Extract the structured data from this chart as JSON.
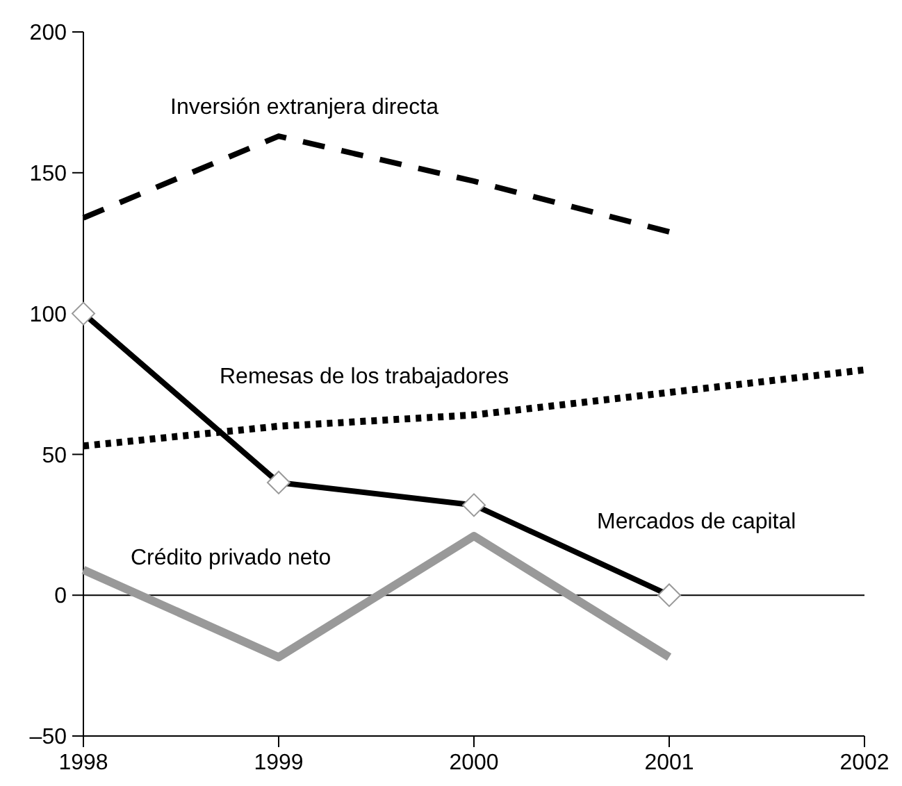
{
  "chart_data": {
    "type": "line",
    "x": [
      1998,
      1999,
      2000,
      2001,
      2002
    ],
    "xlim": [
      1998,
      2002
    ],
    "xticks": [
      1998,
      1999,
      2000,
      2001,
      2002
    ],
    "ylim": [
      -50,
      200
    ],
    "yticks": [
      {
        "value": -50,
        "label": "–50"
      },
      0,
      50,
      100,
      150,
      200
    ],
    "grid": false,
    "ref_lines": [
      {
        "axis": "y",
        "value": 0,
        "color": "#000000",
        "line_style": "solid"
      }
    ],
    "series": [
      {
        "name": "Inversión extranjera directa",
        "color": "#000000",
        "line_style": "dashed",
        "marker": "none",
        "values": [
          134,
          163,
          147,
          129,
          null
        ]
      },
      {
        "name": "Remesas de los trabajadores",
        "color": "#000000",
        "line_style": "dotted",
        "marker": "none",
        "values": [
          53,
          60,
          64,
          72,
          80
        ]
      },
      {
        "name": "Mercados de capital",
        "color": "#000000",
        "line_style": "solid",
        "marker": "diamond",
        "values": [
          100,
          40,
          32,
          0,
          null
        ]
      },
      {
        "name": "Crédito privado neto",
        "color": "#999999",
        "line_style": "solid",
        "marker": "none",
        "values": [
          9,
          -22,
          21,
          -22,
          null
        ]
      }
    ]
  }
}
